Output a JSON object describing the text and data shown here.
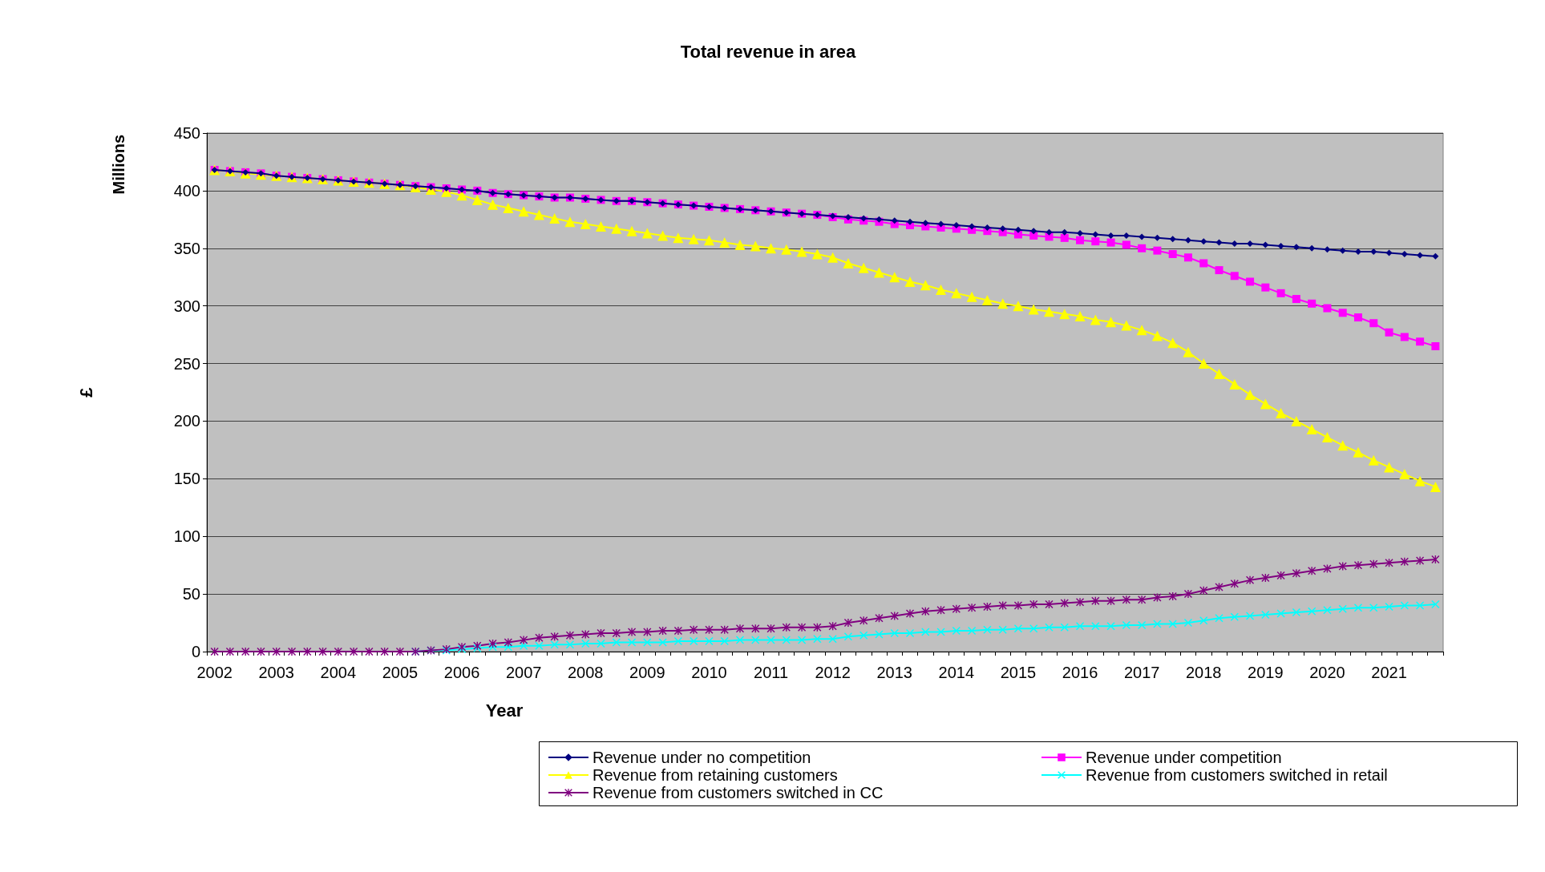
{
  "chart_data": {
    "type": "line",
    "title": "Total revenue in area",
    "xlabel": "Year",
    "ylabel": "£",
    "annotations": [
      "Millions"
    ],
    "categories": [
      "2002",
      null,
      null,
      null,
      "2003",
      null,
      null,
      null,
      "2004",
      null,
      null,
      null,
      "2005",
      null,
      null,
      null,
      "2006",
      null,
      null,
      null,
      "2007",
      null,
      null,
      null,
      "2008",
      null,
      null,
      null,
      "2009",
      null,
      null,
      null,
      "2010",
      null,
      null,
      null,
      "2011",
      null,
      null,
      null,
      "2012",
      null,
      null,
      null,
      "2013",
      null,
      null,
      null,
      "2014",
      null,
      null,
      null,
      "2015",
      null,
      null,
      null,
      "2016",
      null,
      null,
      null,
      "2017",
      null,
      null,
      null,
      "2018",
      null,
      null,
      null,
      "2019",
      null,
      null,
      null,
      "2020",
      null,
      null,
      null,
      "2021",
      null,
      null,
      null
    ],
    "series": [
      {
        "name": "Revenue under no competition",
        "color": "#000080",
        "marker": "diamond",
        "values": [
          418,
          417,
          416,
          415,
          413,
          412,
          411,
          410,
          409,
          408,
          407,
          406,
          405,
          404,
          403,
          402,
          401,
          400,
          398,
          397,
          396,
          395,
          394,
          394,
          393,
          392,
          391,
          391,
          390,
          389,
          388,
          387,
          386,
          385,
          384,
          383,
          382,
          381,
          380,
          379,
          378,
          377,
          376,
          375,
          374,
          373,
          372,
          371,
          370,
          369,
          368,
          367,
          366,
          365,
          364,
          364,
          363,
          362,
          361,
          361,
          360,
          359,
          358,
          357,
          356,
          355,
          354,
          354,
          353,
          352,
          351,
          350,
          349,
          348,
          347,
          347,
          346,
          345,
          344,
          343
        ]
      },
      {
        "name": "Revenue under competition",
        "color": "#ff00ff",
        "marker": "square",
        "values": [
          418,
          417,
          416,
          415,
          413,
          412,
          411,
          410,
          409,
          408,
          407,
          406,
          405,
          404,
          403,
          402,
          401,
          400,
          398,
          397,
          396,
          395,
          394,
          394,
          393,
          392,
          391,
          391,
          390,
          389,
          388,
          387,
          386,
          385,
          384,
          383,
          382,
          381,
          380,
          379,
          377,
          375,
          374,
          373,
          371,
          370,
          369,
          368,
          367,
          366,
          365,
          364,
          362,
          361,
          360,
          359,
          357,
          356,
          355,
          353,
          350,
          348,
          345,
          342,
          337,
          331,
          326,
          321,
          316,
          311,
          306,
          302,
          298,
          294,
          290,
          285,
          277,
          273,
          269,
          265
        ]
      },
      {
        "name": "Revenue from retaining customers",
        "color": "#ffff00",
        "marker": "triangle",
        "values": [
          418,
          417,
          415,
          414,
          413,
          412,
          411,
          410,
          409,
          408,
          407,
          406,
          405,
          403,
          401,
          399,
          396,
          392,
          388,
          385,
          382,
          379,
          376,
          373,
          371,
          369,
          367,
          365,
          363,
          361,
          359,
          358,
          357,
          355,
          353,
          352,
          350,
          349,
          347,
          345,
          342,
          337,
          333,
          329,
          325,
          321,
          318,
          314,
          311,
          308,
          305,
          302,
          300,
          297,
          295,
          293,
          291,
          288,
          286,
          283,
          279,
          274,
          268,
          260,
          250,
          241,
          232,
          223,
          215,
          207,
          200,
          193,
          186,
          179,
          173,
          166,
          160,
          154,
          148,
          143
        ]
      },
      {
        "name": "Revenue from customers switched in retail",
        "color": "#00ffff",
        "marker": "cross",
        "values": [
          null,
          null,
          null,
          null,
          null,
          null,
          null,
          null,
          null,
          null,
          null,
          null,
          null,
          0,
          1,
          1,
          2,
          3,
          4,
          4,
          5,
          5,
          6,
          6,
          7,
          7,
          8,
          8,
          8,
          8,
          9,
          9,
          9,
          9,
          10,
          10,
          10,
          10,
          10,
          11,
          11,
          13,
          14,
          15,
          16,
          16,
          17,
          17,
          18,
          18,
          19,
          19,
          20,
          20,
          21,
          21,
          22,
          22,
          22,
          23,
          23,
          24,
          24,
          25,
          27,
          29,
          30,
          31,
          32,
          33,
          34,
          35,
          36,
          37,
          38,
          38,
          39,
          40,
          40,
          41
        ]
      },
      {
        "name": "Revenue from customers switched in CC",
        "color": "#800080",
        "marker": "star",
        "values": [
          0,
          0,
          0,
          0,
          0,
          0,
          0,
          0,
          0,
          0,
          0,
          0,
          0,
          0,
          1,
          2,
          4,
          5,
          7,
          8,
          10,
          12,
          13,
          14,
          15,
          16,
          16,
          17,
          17,
          18,
          18,
          19,
          19,
          19,
          20,
          20,
          20,
          21,
          21,
          21,
          22,
          25,
          27,
          29,
          31,
          33,
          35,
          36,
          37,
          38,
          39,
          40,
          40,
          41,
          41,
          42,
          43,
          44,
          44,
          45,
          45,
          47,
          48,
          50,
          53,
          56,
          59,
          62,
          64,
          66,
          68,
          70,
          72,
          74,
          75,
          76,
          77,
          78,
          79,
          80
        ]
      }
    ],
    "ylim": [
      0,
      450
    ],
    "yticks": [
      0,
      50,
      100,
      150,
      200,
      250,
      300,
      350,
      400,
      450
    ],
    "grid": "y",
    "legend": "bottom",
    "line_style": "solid"
  }
}
